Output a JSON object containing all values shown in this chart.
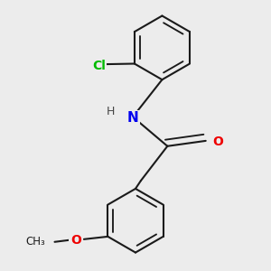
{
  "background_color": "#ececec",
  "bond_color": "#1a1a1a",
  "bond_width": 1.5,
  "atom_colors": {
    "Cl": "#00bb00",
    "N": "#0000ee",
    "O": "#ee0000",
    "C": "#1a1a1a",
    "H": "#444444"
  },
  "font_size": 10,
  "fig_size": [
    3.0,
    3.0
  ],
  "dpi": 100,
  "xlim": [
    -1.8,
    2.2
  ],
  "ylim": [
    -2.8,
    2.2
  ]
}
